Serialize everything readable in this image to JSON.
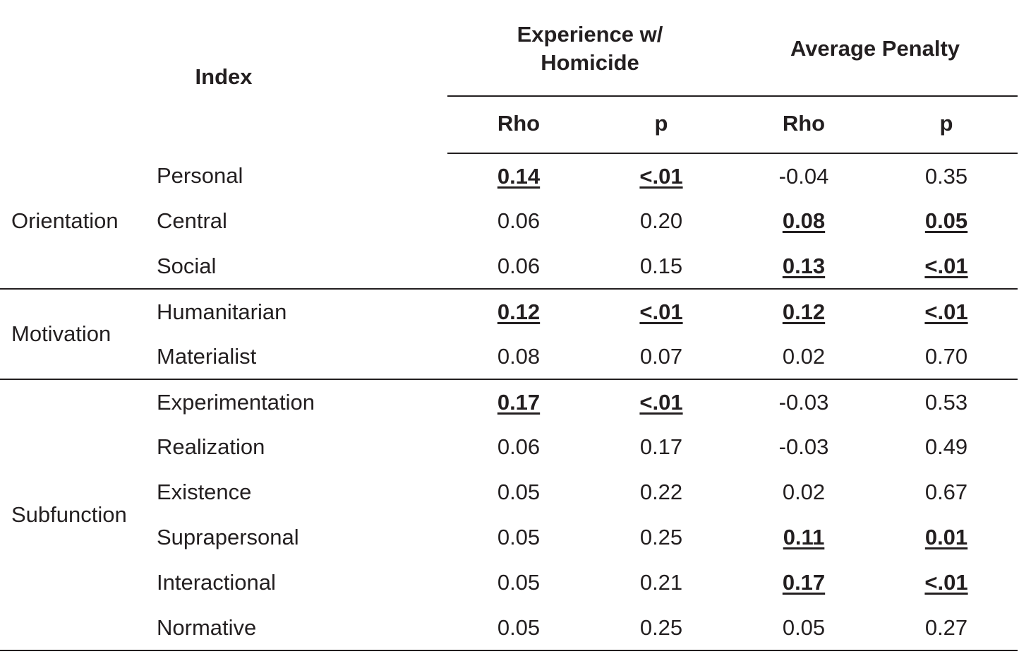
{
  "table": {
    "index_header": "Index",
    "group_headers": [
      "Experience w/\nHomicide",
      "Average Penalty"
    ],
    "sub_headers": [
      "Rho",
      "p",
      "Rho",
      "p"
    ],
    "sections": [
      {
        "name": "Orientation",
        "rows": [
          {
            "label": "Personal",
            "values": [
              "0.14",
              "<.01",
              "-0.04",
              "0.35"
            ],
            "significant": [
              true,
              true,
              false,
              false
            ]
          },
          {
            "label": "Central",
            "values": [
              "0.06",
              "0.20",
              "0.08",
              "0.05"
            ],
            "significant": [
              false,
              false,
              true,
              true
            ]
          },
          {
            "label": "Social",
            "values": [
              "0.06",
              "0.15",
              "0.13",
              "<.01"
            ],
            "significant": [
              false,
              false,
              true,
              true
            ]
          }
        ]
      },
      {
        "name": "Motivation",
        "rows": [
          {
            "label": "Humanitarian",
            "values": [
              "0.12",
              "<.01",
              "0.12",
              "<.01"
            ],
            "significant": [
              true,
              true,
              true,
              true
            ]
          },
          {
            "label": "Materialist",
            "values": [
              "0.08",
              "0.07",
              "0.02",
              "0.70"
            ],
            "significant": [
              false,
              false,
              false,
              false
            ]
          }
        ]
      },
      {
        "name": "Subfunction",
        "rows": [
          {
            "label": "Experimentation",
            "values": [
              "0.17",
              "<.01",
              "-0.03",
              "0.53"
            ],
            "significant": [
              true,
              true,
              false,
              false
            ]
          },
          {
            "label": "Realization",
            "values": [
              "0.06",
              "0.17",
              "-0.03",
              "0.49"
            ],
            "significant": [
              false,
              false,
              false,
              false
            ]
          },
          {
            "label": "Existence",
            "values": [
              "0.05",
              "0.22",
              "0.02",
              "0.67"
            ],
            "significant": [
              false,
              false,
              false,
              false
            ]
          },
          {
            "label": "Suprapersonal",
            "values": [
              "0.05",
              "0.25",
              "0.11",
              "0.01"
            ],
            "significant": [
              false,
              false,
              true,
              true
            ]
          },
          {
            "label": "Interactional",
            "values": [
              "0.05",
              "0.21",
              "0.17",
              "<.01"
            ],
            "significant": [
              false,
              false,
              true,
              true
            ]
          },
          {
            "label": "Normative",
            "values": [
              "0.05",
              "0.25",
              "0.05",
              "0.27"
            ],
            "significant": [
              false,
              false,
              false,
              false
            ]
          }
        ]
      }
    ]
  }
}
